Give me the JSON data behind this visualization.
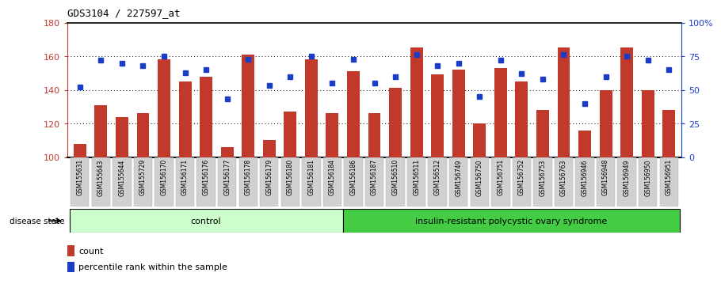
{
  "title": "GDS3104 / 227597_at",
  "samples": [
    "GSM155631",
    "GSM155643",
    "GSM155644",
    "GSM155729",
    "GSM156170",
    "GSM156171",
    "GSM156176",
    "GSM156177",
    "GSM156178",
    "GSM156179",
    "GSM156180",
    "GSM156181",
    "GSM156184",
    "GSM156186",
    "GSM156187",
    "GSM156510",
    "GSM156511",
    "GSM156512",
    "GSM156749",
    "GSM156750",
    "GSM156751",
    "GSM156752",
    "GSM156753",
    "GSM156763",
    "GSM156946",
    "GSM156948",
    "GSM156949",
    "GSM156950",
    "GSM156951"
  ],
  "bar_values": [
    108,
    131,
    124,
    126,
    158,
    145,
    148,
    106,
    161,
    110,
    127,
    158,
    126,
    151,
    126,
    141,
    165,
    149,
    152,
    120,
    153,
    145,
    128,
    165,
    116,
    140,
    165,
    140,
    128
  ],
  "pct_values": [
    52,
    72,
    70,
    68,
    75,
    63,
    65,
    43,
    73,
    53,
    60,
    75,
    55,
    73,
    55,
    60,
    76,
    68,
    70,
    45,
    72,
    62,
    58,
    76,
    40,
    60,
    75,
    72,
    65
  ],
  "control_count": 13,
  "ylim_left": [
    100,
    180
  ],
  "ylim_right": [
    0,
    100
  ],
  "yticks_left": [
    100,
    120,
    140,
    160,
    180
  ],
  "yticks_right": [
    0,
    25,
    50,
    75,
    100
  ],
  "ytick_labels_right": [
    "0",
    "25",
    "50",
    "75",
    "100%"
  ],
  "bar_color": "#c0392b",
  "dot_color": "#1a3dc8",
  "control_bg": "#ccffcc",
  "disease_bg": "#44cc44",
  "background_color": "#ffffff",
  "axes_bg": "#ffffff",
  "label_bg": "#d0d0d0",
  "spine_color": "#000000"
}
